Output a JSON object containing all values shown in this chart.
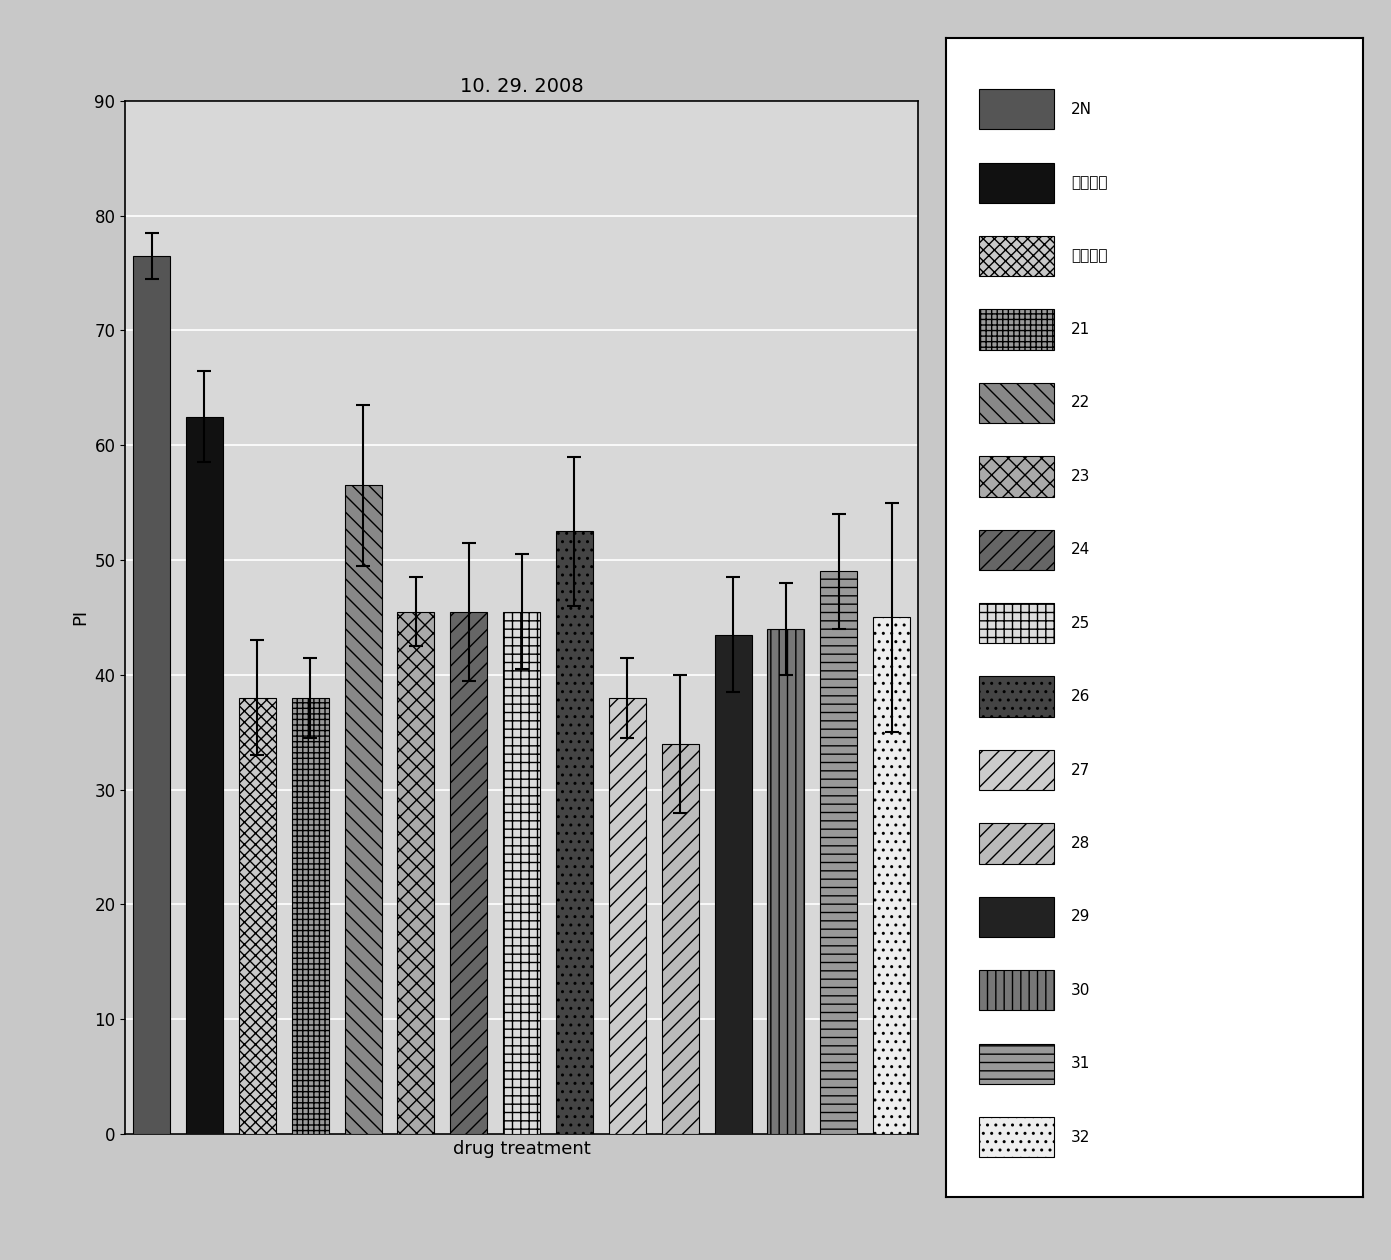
{
  "title": "10. 29. 2008",
  "xlabel": "drug treatment",
  "ylabel": "PI",
  "ylim": [
    0,
    90
  ],
  "yticks": [
    0,
    10,
    20,
    30,
    40,
    50,
    60,
    70,
    80,
    90
  ],
  "bars": [
    {
      "label": "2N",
      "value": 76.5,
      "error": 2.0
    },
    {
      "label": "阳性对照",
      "value": 62.5,
      "error": 4.0
    },
    {
      "label": "阴性对照",
      "value": 38.0,
      "error": 5.0
    },
    {
      "label": "21",
      "value": 38.0,
      "error": 3.5
    },
    {
      "label": "22",
      "value": 56.5,
      "error": 7.0
    },
    {
      "label": "23",
      "value": 45.5,
      "error": 3.0
    },
    {
      "label": "24",
      "value": 45.5,
      "error": 6.0
    },
    {
      "label": "25",
      "value": 45.5,
      "error": 5.0
    },
    {
      "label": "26",
      "value": 52.5,
      "error": 6.5
    },
    {
      "label": "27",
      "value": 38.0,
      "error": 3.5
    },
    {
      "label": "28",
      "value": 34.0,
      "error": 6.0
    },
    {
      "label": "29",
      "value": 43.5,
      "error": 5.0
    },
    {
      "label": "30",
      "value": 44.0,
      "error": 4.0
    },
    {
      "label": "31",
      "value": 49.0,
      "error": 5.0
    },
    {
      "label": "32",
      "value": 45.0,
      "error": 10.0
    }
  ],
  "bar_styles": [
    {
      "color": "#555555",
      "hatch": ""
    },
    {
      "color": "#111111",
      "hatch": ""
    },
    {
      "color": "#c8c8c8",
      "hatch": "xxx"
    },
    {
      "color": "#999999",
      "hatch": "+++"
    },
    {
      "color": "#888888",
      "hatch": "\\\\"
    },
    {
      "color": "#aaaaaa",
      "hatch": "xx"
    },
    {
      "color": "#666666",
      "hatch": "//"
    },
    {
      "color": "#dddddd",
      "hatch": "++"
    },
    {
      "color": "#444444",
      "hatch": ".."
    },
    {
      "color": "#cccccc",
      "hatch": "//"
    },
    {
      "color": "#bbbbbb",
      "hatch": "//"
    },
    {
      "color": "#222222",
      "hatch": ""
    },
    {
      "color": "#777777",
      "hatch": "||"
    },
    {
      "color": "#999999",
      "hatch": "--"
    },
    {
      "color": "#eeeeee",
      "hatch": ".."
    }
  ],
  "fig_bg": "#c8c8c8",
  "plot_bg": "#d8d8d8",
  "grid_color": "#ffffff",
  "title_fontsize": 14,
  "axis_label_fontsize": 13,
  "tick_fontsize": 12,
  "legend_fontsize": 11
}
